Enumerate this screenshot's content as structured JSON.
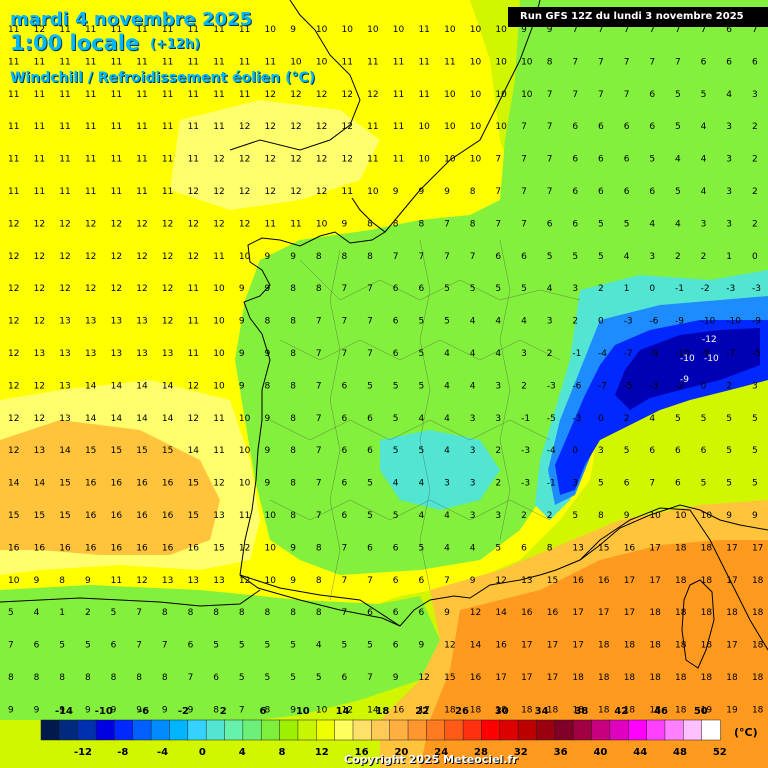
{
  "header": {
    "date": "mardi 4 novembre 2025",
    "time": "1:00 locale",
    "offset": "(+12h)",
    "parameter": "Windchill / Refroidissement éolien (°C)",
    "run": "Run GFS 12Z du lundi 3 novembre 2025"
  },
  "footer": {
    "copyright": "Copyright 2025 Meteociel.fr"
  },
  "legend": {
    "unit": "(°C)",
    "colors": [
      "#001a4d",
      "#002a80",
      "#0030b0",
      "#0000e0",
      "#0028ff",
      "#0060ff",
      "#008cff",
      "#00b4ff",
      "#33d2ff",
      "#52e6d2",
      "#66f2a8",
      "#6cf07a",
      "#7ef03c",
      "#9cf000",
      "#c8f500",
      "#f0ff00",
      "#ffff60",
      "#ffe068",
      "#ffca58",
      "#ffb040",
      "#ff9630",
      "#ff7a20",
      "#ff5a18",
      "#ff3010",
      "#ff0000",
      "#dd0000",
      "#bb0000",
      "#990010",
      "#800028",
      "#a00040",
      "#c80080",
      "#e000c0",
      "#ff00ff",
      "#ff40ff",
      "#ff80ff",
      "#ffc0ff",
      "#ffffff"
    ],
    "top_labels": [
      "-14",
      "-10",
      "-6",
      "-2",
      "2",
      "6",
      "10",
      "14",
      "18",
      "22",
      "26",
      "30",
      "34",
      "38",
      "42",
      "46",
      "50"
    ],
    "bottom_labels": [
      "-12",
      "-8",
      "-4",
      "0",
      "4",
      "8",
      "12",
      "16",
      "20",
      "24",
      "28",
      "32",
      "36",
      "40",
      "44",
      "48",
      "52"
    ]
  },
  "map": {
    "colors": {
      "yellow": "#ffff00",
      "light_yellow": "#ffff6e",
      "orange_light": "#ffc43c",
      "orange": "#ff9a1e",
      "light_green": "#d2f500",
      "green": "#82f03c",
      "cyan": "#52e6d2",
      "blue_light": "#1e8cff",
      "blue": "#0028ff",
      "dark_blue": "#0000b4",
      "coast": "#000000"
    },
    "grid_values": [
      [
        11,
        12,
        11,
        11,
        11,
        11,
        11,
        11,
        11,
        11,
        10,
        9,
        10,
        10,
        10,
        10,
        11,
        10,
        10,
        10,
        9,
        9,
        7,
        7,
        7,
        7,
        7,
        7,
        6,
        7
      ],
      [
        11,
        11,
        11,
        11,
        11,
        11,
        11,
        11,
        11,
        11,
        11,
        10,
        10,
        11,
        11,
        11,
        11,
        11,
        10,
        10,
        10,
        8,
        7,
        7,
        7,
        7,
        7,
        6,
        6,
        6
      ],
      [
        11,
        11,
        11,
        11,
        11,
        11,
        11,
        11,
        11,
        11,
        12,
        12,
        12,
        12,
        12,
        11,
        11,
        10,
        10,
        10,
        10,
        7,
        7,
        7,
        7,
        6,
        5,
        5,
        4,
        3
      ],
      [
        11,
        11,
        11,
        11,
        11,
        11,
        11,
        11,
        11,
        12,
        12,
        12,
        12,
        12,
        11,
        11,
        10,
        10,
        10,
        10,
        7,
        7,
        6,
        6,
        6,
        6,
        5,
        4,
        3,
        2
      ],
      [
        11,
        11,
        11,
        11,
        11,
        11,
        11,
        11,
        12,
        12,
        12,
        12,
        12,
        12,
        11,
        11,
        10,
        10,
        10,
        7,
        7,
        7,
        6,
        6,
        6,
        5,
        4,
        4,
        3,
        2
      ],
      [
        11,
        11,
        11,
        11,
        11,
        11,
        11,
        12,
        12,
        12,
        12,
        12,
        12,
        11,
        10,
        9,
        9,
        9,
        8,
        7,
        7,
        7,
        6,
        6,
        6,
        6,
        5,
        4,
        3,
        2
      ],
      [
        12,
        12,
        12,
        12,
        12,
        12,
        12,
        12,
        12,
        12,
        11,
        11,
        10,
        9,
        8,
        8,
        8,
        7,
        8,
        7,
        7,
        6,
        6,
        5,
        5,
        4,
        4,
        3,
        3,
        2
      ],
      [
        12,
        12,
        12,
        12,
        12,
        12,
        12,
        12,
        11,
        10,
        9,
        9,
        8,
        8,
        8,
        7,
        7,
        7,
        7,
        6,
        6,
        5,
        5,
        5,
        4,
        3,
        2,
        2,
        1,
        0
      ],
      [
        12,
        12,
        12,
        12,
        12,
        12,
        12,
        11,
        10,
        9,
        9,
        8,
        8,
        7,
        7,
        6,
        6,
        5,
        5,
        5,
        5,
        4,
        3,
        2,
        1,
        0,
        -1,
        -2,
        -3,
        -3
      ],
      [
        12,
        12,
        13,
        13,
        13,
        13,
        12,
        11,
        10,
        9,
        8,
        8,
        7,
        7,
        7,
        6,
        5,
        5,
        4,
        4,
        4,
        3,
        2,
        0,
        -3,
        -6,
        -9,
        -10,
        -10,
        -9
      ],
      [
        12,
        13,
        13,
        13,
        13,
        13,
        13,
        11,
        10,
        9,
        9,
        8,
        7,
        7,
        7,
        6,
        5,
        4,
        4,
        4,
        3,
        2,
        -1,
        -4,
        -7,
        -9,
        -10,
        -9,
        -7,
        -5
      ],
      [
        12,
        12,
        13,
        14,
        14,
        14,
        14,
        12,
        10,
        9,
        8,
        8,
        7,
        6,
        5,
        5,
        5,
        4,
        4,
        3,
        2,
        -3,
        -6,
        -7,
        -5,
        -3,
        -2,
        0,
        2,
        3
      ],
      [
        12,
        12,
        13,
        14,
        14,
        14,
        14,
        12,
        11,
        10,
        9,
        8,
        7,
        6,
        6,
        5,
        4,
        4,
        3,
        3,
        -1,
        -5,
        -3,
        0,
        2,
        4,
        5,
        5,
        5,
        5
      ],
      [
        12,
        13,
        14,
        15,
        15,
        15,
        15,
        14,
        11,
        10,
        9,
        8,
        7,
        6,
        6,
        5,
        5,
        4,
        3,
        2,
        -3,
        -4,
        0,
        3,
        5,
        6,
        6,
        6,
        5,
        5
      ],
      [
        14,
        14,
        15,
        16,
        16,
        16,
        16,
        15,
        12,
        10,
        9,
        8,
        7,
        6,
        5,
        4,
        4,
        3,
        3,
        2,
        -3,
        -1,
        3,
        5,
        6,
        7,
        6,
        5,
        5,
        5
      ],
      [
        15,
        15,
        15,
        16,
        16,
        16,
        16,
        15,
        13,
        11,
        10,
        8,
        7,
        6,
        5,
        5,
        4,
        4,
        3,
        3,
        2,
        2,
        5,
        8,
        9,
        10,
        10,
        10,
        9,
        9
      ],
      [
        16,
        16,
        16,
        16,
        16,
        16,
        16,
        16,
        15,
        12,
        10,
        9,
        8,
        7,
        6,
        6,
        5,
        4,
        4,
        5,
        6,
        8,
        13,
        15,
        16,
        17,
        18,
        18,
        17,
        17
      ],
      [
        10,
        9,
        8,
        9,
        11,
        12,
        13,
        13,
        13,
        12,
        10,
        9,
        8,
        7,
        7,
        6,
        6,
        7,
        9,
        12,
        13,
        15,
        16,
        16,
        17,
        17,
        18,
        18,
        17,
        18
      ],
      [
        5,
        4,
        1,
        2,
        5,
        7,
        8,
        8,
        8,
        8,
        8,
        8,
        8,
        7,
        6,
        6,
        6,
        9,
        12,
        14,
        16,
        16,
        17,
        17,
        17,
        18,
        18,
        18,
        18,
        18
      ],
      [
        7,
        6,
        5,
        5,
        6,
        7,
        7,
        6,
        5,
        5,
        5,
        5,
        4,
        5,
        5,
        6,
        9,
        12,
        14,
        16,
        17,
        17,
        17,
        18,
        18,
        18,
        18,
        18,
        17,
        18
      ],
      [
        8,
        8,
        8,
        8,
        8,
        8,
        8,
        7,
        6,
        5,
        5,
        5,
        5,
        6,
        7,
        9,
        12,
        15,
        16,
        17,
        17,
        17,
        18,
        18,
        18,
        18,
        18,
        18,
        18,
        18
      ],
      [
        9,
        9,
        9,
        9,
        9,
        9,
        9,
        9,
        8,
        7,
        8,
        9,
        10,
        12,
        14,
        16,
        17,
        18,
        18,
        18,
        18,
        18,
        18,
        18,
        18,
        18,
        18,
        19,
        19,
        18
      ]
    ],
    "highlighted_values": [
      "-12",
      "-10",
      "-10",
      "-9"
    ]
  }
}
